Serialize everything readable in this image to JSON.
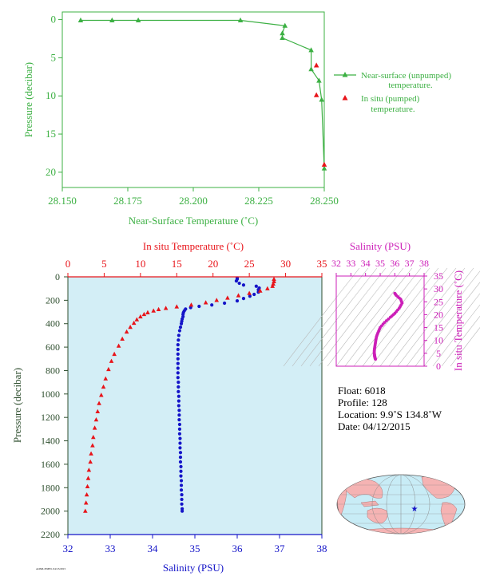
{
  "colors": {
    "green": "#3cb043",
    "red": "#e8141a",
    "blue": "#1414c8",
    "magenta": "#cc1fb8",
    "panel_bg": "#d3eef6",
    "land": "#f5b3b3",
    "ocean": "#c8ecf6"
  },
  "chart_data": [
    {
      "type": "line",
      "xlabel": "Near-Surface Temperature (˚C)",
      "ylabel": "Pressure (decibar)",
      "xlim": [
        28.15,
        28.25
      ],
      "ylim": [
        22,
        -1
      ],
      "xticks": [
        "28.150",
        "28.175",
        "28.200",
        "28.225",
        "28.250"
      ],
      "yticks": [
        "0",
        "5",
        "10",
        "15",
        "20"
      ],
      "legend_position": "right",
      "series": [
        {
          "name": "Near-surface (unpumped) temperature.",
          "marker": "triangle",
          "line": true,
          "x": [
            28.157,
            28.169,
            28.179,
            28.218,
            28.235,
            28.234,
            28.234,
            28.245,
            28.245,
            28.248,
            28.249,
            28.25
          ],
          "y": [
            0.1,
            0.1,
            0.1,
            0.1,
            0.8,
            1.8,
            2.4,
            4.0,
            6.5,
            8.0,
            10.5,
            19.5
          ]
        },
        {
          "name": "In situ (pumped) temperature.",
          "marker": "triangle",
          "line": false,
          "x": [
            28.247,
            28.247,
            28.25
          ],
          "y": [
            6.0,
            9.9,
            19.0
          ]
        }
      ]
    },
    {
      "type": "scatter",
      "ylabel": "Pressure (decibar)",
      "ylim": [
        2200,
        0
      ],
      "yticks": [
        "0",
        "200",
        "400",
        "600",
        "800",
        "1000",
        "1200",
        "1400",
        "1600",
        "1800",
        "2000",
        "2200"
      ],
      "top_axis": {
        "label": "In situ Temperature (˚C)",
        "lim": [
          0,
          35
        ],
        "ticks": [
          "0",
          "5",
          "10",
          "15",
          "20",
          "25",
          "30",
          "35"
        ]
      },
      "bottom_axis": {
        "label": "Salinity (PSU)",
        "lim": [
          32,
          38
        ],
        "ticks": [
          "32",
          "33",
          "34",
          "35",
          "36",
          "37",
          "38"
        ]
      },
      "series": [
        {
          "variable": "temperature",
          "marker": "triangle",
          "points": [
            [
              28.4,
              20
            ],
            [
              28.4,
              40
            ],
            [
              28.3,
              60
            ],
            [
              28.2,
              80
            ],
            [
              27.5,
              100
            ],
            [
              26.5,
              120
            ],
            [
              25.0,
              140
            ],
            [
              23.5,
              160
            ],
            [
              22.0,
              180
            ],
            [
              20.5,
              200
            ],
            [
              19.0,
              220
            ],
            [
              17.0,
              240
            ],
            [
              15.0,
              255
            ],
            [
              13.5,
              268
            ],
            [
              12.5,
              278
            ],
            [
              11.8,
              290
            ],
            [
              11.0,
              305
            ],
            [
              10.5,
              320
            ],
            [
              10.0,
              340
            ],
            [
              9.5,
              365
            ],
            [
              9.1,
              395
            ],
            [
              8.6,
              430
            ],
            [
              8.1,
              470
            ],
            [
              7.5,
              530
            ],
            [
              7.0,
              590
            ],
            [
              6.4,
              660
            ],
            [
              6.0,
              720
            ],
            [
              5.6,
              790
            ],
            [
              5.2,
              870
            ],
            [
              4.9,
              940
            ],
            [
              4.6,
              1010
            ],
            [
              4.3,
              1080
            ],
            [
              4.1,
              1150
            ],
            [
              3.9,
              1220
            ],
            [
              3.7,
              1290
            ],
            [
              3.5,
              1370
            ],
            [
              3.4,
              1440
            ],
            [
              3.2,
              1510
            ],
            [
              3.1,
              1580
            ],
            [
              2.9,
              1650
            ],
            [
              2.8,
              1720
            ],
            [
              2.7,
              1790
            ],
            [
              2.6,
              1860
            ],
            [
              2.5,
              1930
            ],
            [
              2.4,
              2000
            ]
          ]
        },
        {
          "variable": "salinity",
          "marker": "dot",
          "points": [
            [
              36.0,
              10
            ],
            [
              36.0,
              20
            ],
            [
              35.98,
              35
            ],
            [
              36.05,
              55
            ],
            [
              36.15,
              70
            ],
            [
              36.45,
              80
            ],
            [
              36.52,
              95
            ],
            [
              36.5,
              110
            ],
            [
              36.5,
              130
            ],
            [
              36.4,
              150
            ],
            [
              36.3,
              165
            ],
            [
              36.15,
              185
            ],
            [
              36.0,
              205
            ],
            [
              35.7,
              225
            ],
            [
              35.4,
              240
            ],
            [
              35.1,
              252
            ],
            [
              34.9,
              262
            ],
            [
              34.78,
              275
            ],
            [
              34.75,
              290
            ],
            [
              34.73,
              305
            ],
            [
              34.72,
              320
            ],
            [
              34.72,
              340
            ],
            [
              34.7,
              360
            ],
            [
              34.69,
              380
            ],
            [
              34.68,
              400
            ],
            [
              34.66,
              430
            ],
            [
              34.64,
              460
            ],
            [
              34.62,
              500
            ],
            [
              34.61,
              540
            ],
            [
              34.6,
              580
            ],
            [
              34.6,
              620
            ],
            [
              34.6,
              660
            ],
            [
              34.6,
              700
            ],
            [
              34.6,
              740
            ],
            [
              34.6,
              780
            ],
            [
              34.6,
              820
            ],
            [
              34.6,
              860
            ],
            [
              34.61,
              900
            ],
            [
              34.61,
              940
            ],
            [
              34.61,
              980
            ],
            [
              34.62,
              1020
            ],
            [
              34.62,
              1060
            ],
            [
              34.62,
              1100
            ],
            [
              34.63,
              1140
            ],
            [
              34.63,
              1180
            ],
            [
              34.63,
              1220
            ],
            [
              34.64,
              1260
            ],
            [
              34.64,
              1300
            ],
            [
              34.64,
              1340
            ],
            [
              34.65,
              1380
            ],
            [
              34.65,
              1420
            ],
            [
              34.65,
              1460
            ],
            [
              34.66,
              1500
            ],
            [
              34.66,
              1540
            ],
            [
              34.66,
              1580
            ],
            [
              34.67,
              1620
            ],
            [
              34.67,
              1660
            ],
            [
              34.67,
              1700
            ],
            [
              34.68,
              1740
            ],
            [
              34.68,
              1780
            ],
            [
              34.68,
              1820
            ],
            [
              34.69,
              1860
            ],
            [
              34.69,
              1900
            ],
            [
              34.69,
              1940
            ],
            [
              34.7,
              1980
            ],
            [
              34.7,
              2000
            ]
          ]
        }
      ]
    },
    {
      "type": "scatter",
      "top_axis": {
        "label": "Salinity (PSU)",
        "lim": [
          32,
          38
        ],
        "ticks": [
          "32",
          "33",
          "34",
          "35",
          "36",
          "37",
          "38"
        ]
      },
      "right_axis": {
        "label": "In situ Temperature (˚C)",
        "lim": [
          0,
          35
        ],
        "ticks": [
          "0",
          "5",
          "10",
          "15",
          "20",
          "25",
          "30",
          "35"
        ]
      },
      "background": "density contours",
      "series": [
        {
          "variable": "T-S",
          "marker": "dot",
          "points": [
            [
              36.0,
              28.3
            ],
            [
              36.1,
              27.5
            ],
            [
              36.4,
              26.0
            ],
            [
              36.5,
              24.5
            ],
            [
              36.3,
              22.5
            ],
            [
              36.0,
              20.5
            ],
            [
              35.7,
              19.0
            ],
            [
              35.3,
              17.0
            ],
            [
              35.0,
              15.0
            ],
            [
              34.85,
              13.0
            ],
            [
              34.75,
              11.5
            ],
            [
              34.7,
              10.0
            ],
            [
              34.66,
              8.5
            ],
            [
              34.62,
              7.0
            ],
            [
              34.6,
              6.0
            ],
            [
              34.6,
              5.0
            ],
            [
              34.61,
              4.5
            ],
            [
              34.62,
              4.0
            ],
            [
              34.64,
              3.5
            ],
            [
              34.66,
              3.0
            ],
            [
              34.69,
              2.6
            ]
          ]
        }
      ]
    }
  ],
  "float_info": {
    "float": "Float:  6018",
    "profile": "Profile:  128",
    "location": "Location:  9.9˚S  134.8˚W",
    "date": "Date:  04/12/2015"
  },
  "footnote": "AOML/PMEL 04/13/2015",
  "map": {
    "projection": "world map",
    "marker": "star"
  }
}
